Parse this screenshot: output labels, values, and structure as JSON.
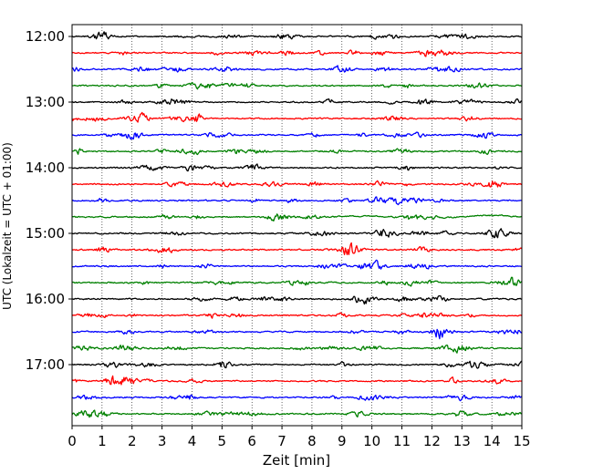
{
  "chart_data": {
    "type": "line",
    "title": "",
    "xlabel": "Zeit  [min]",
    "ylabel": "UTC (Lokalzeit = UTC + 01:00)",
    "xlim": [
      0,
      15
    ],
    "x_ticks": [
      "0",
      "1",
      "2",
      "3",
      "4",
      "5",
      "6",
      "7",
      "8",
      "9",
      "10",
      "11",
      "12",
      "13",
      "14",
      "15"
    ],
    "y_ticks": [
      "12:00",
      "13:00",
      "14:00",
      "15:00",
      "16:00",
      "17:00"
    ],
    "grid": "vertical dotted",
    "trace_interval_min": 15,
    "first_trace": "12:00",
    "trace_colors": [
      "#000000",
      "#ff0000",
      "#0000ff",
      "#008000"
    ],
    "traces": [
      {
        "start": "12:00",
        "color": "#000000"
      },
      {
        "start": "12:15",
        "color": "#ff0000"
      },
      {
        "start": "12:30",
        "color": "#0000ff"
      },
      {
        "start": "12:45",
        "color": "#008000"
      },
      {
        "start": "13:00",
        "color": "#000000"
      },
      {
        "start": "13:15",
        "color": "#ff0000"
      },
      {
        "start": "13:30",
        "color": "#0000ff"
      },
      {
        "start": "13:45",
        "color": "#008000"
      },
      {
        "start": "14:00",
        "color": "#000000"
      },
      {
        "start": "14:15",
        "color": "#ff0000"
      },
      {
        "start": "14:30",
        "color": "#0000ff"
      },
      {
        "start": "14:45",
        "color": "#008000"
      },
      {
        "start": "15:00",
        "color": "#000000"
      },
      {
        "start": "15:15",
        "color": "#ff0000"
      },
      {
        "start": "15:30",
        "color": "#0000ff"
      },
      {
        "start": "15:45",
        "color": "#008000"
      },
      {
        "start": "16:00",
        "color": "#000000"
      },
      {
        "start": "16:15",
        "color": "#ff0000"
      },
      {
        "start": "16:30",
        "color": "#0000ff"
      },
      {
        "start": "16:45",
        "color": "#008000"
      },
      {
        "start": "17:00",
        "color": "#000000"
      },
      {
        "start": "17:15",
        "color": "#ff0000"
      },
      {
        "start": "17:30",
        "color": "#0000ff"
      },
      {
        "start": "17:45",
        "color": "#008000"
      }
    ]
  }
}
